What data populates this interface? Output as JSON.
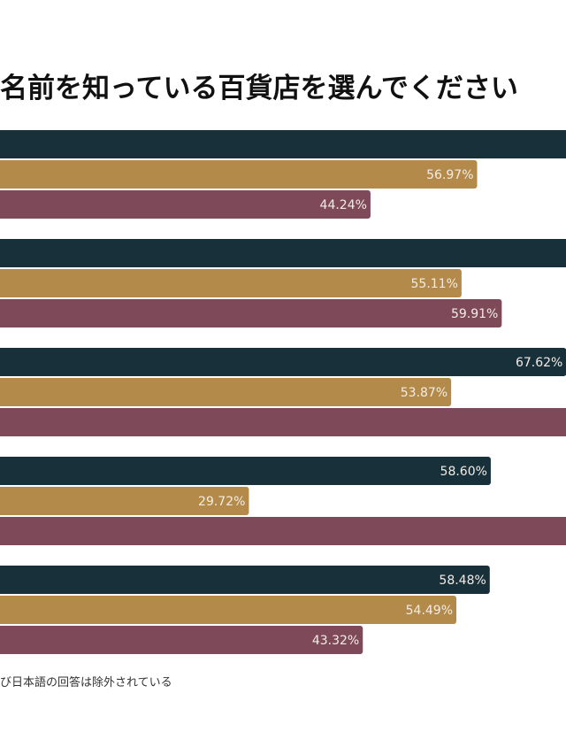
{
  "chart_data": {
    "type": "bar",
    "orientation": "horizontal",
    "title": "名前を知っている百貨店を選んでください",
    "footnote": "び日本語の回答は除外されている",
    "groups": [
      {
        "values": [
          null,
          56.97,
          44.24
        ],
        "labels": [
          "",
          "56.97%",
          "44.24%"
        ]
      },
      {
        "values": [
          null,
          55.11,
          59.91
        ],
        "labels": [
          "",
          "55.11%",
          "59.91%"
        ]
      },
      {
        "values": [
          67.62,
          53.87,
          null
        ],
        "labels": [
          "67.62%",
          "53.87%",
          ""
        ]
      },
      {
        "values": [
          58.6,
          29.72,
          null
        ],
        "labels": [
          "58.60%",
          "29.72%",
          ""
        ]
      },
      {
        "values": [
          58.48,
          54.49,
          43.32
        ],
        "labels": [
          "58.48%",
          "54.49%",
          "43.32%"
        ]
      }
    ],
    "series_colors": [
      "#18303a",
      "#b38a4a",
      "#7e4a5a"
    ],
    "grid": false,
    "legend": "none"
  }
}
